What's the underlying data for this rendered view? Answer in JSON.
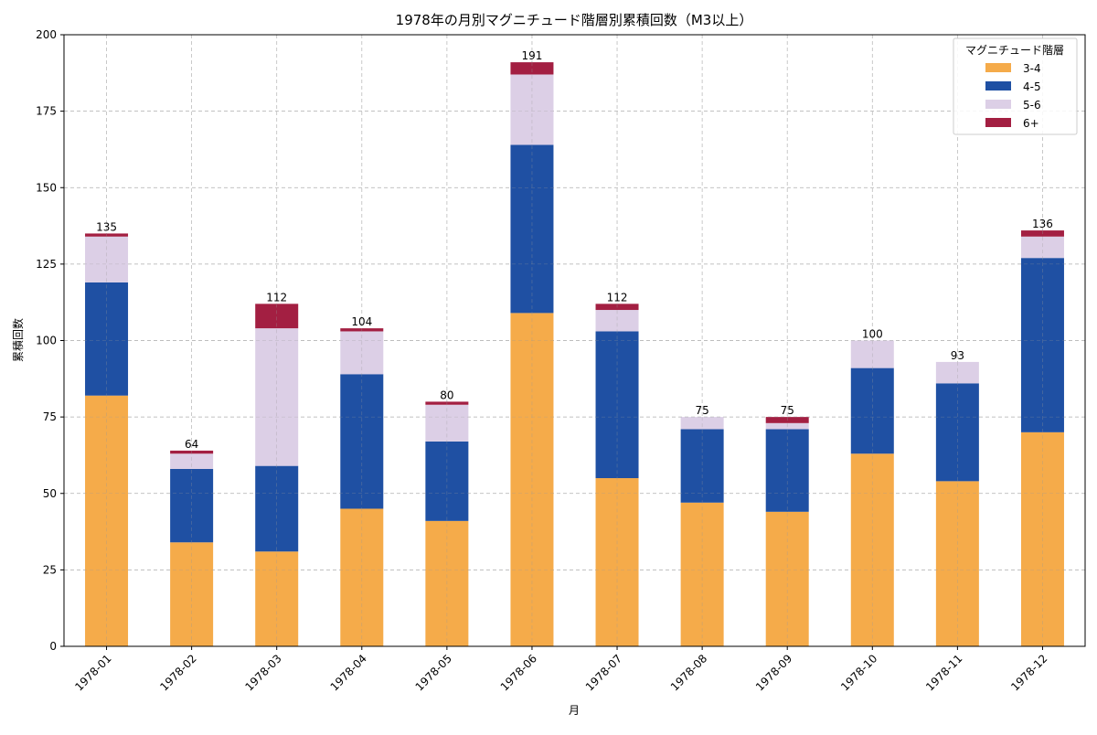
{
  "chart_data": {
    "type": "bar",
    "stacked": true,
    "title": "1978年の月別マグニチュード階層別累積回数（M3以上）",
    "xlabel": "月",
    "ylabel": "累積回数",
    "ylim": [
      0,
      200
    ],
    "yticks": [
      0,
      25,
      50,
      75,
      100,
      125,
      150,
      175,
      200
    ],
    "grid": true,
    "legend": {
      "title": "マグニチュード階層",
      "placement": "top-right"
    },
    "categories": [
      "1978-01",
      "1978-02",
      "1978-03",
      "1978-04",
      "1978-05",
      "1978-06",
      "1978-07",
      "1978-08",
      "1978-09",
      "1978-10",
      "1978-11",
      "1978-12"
    ],
    "series": [
      {
        "name": "3-4",
        "color": "#f5ab4a",
        "values": [
          82,
          34,
          31,
          45,
          41,
          109,
          55,
          47,
          44,
          63,
          54,
          70
        ]
      },
      {
        "name": "4-5",
        "color": "#1f50a3",
        "values": [
          37,
          24,
          28,
          44,
          26,
          55,
          48,
          24,
          27,
          28,
          32,
          57
        ]
      },
      {
        "name": "5-6",
        "color": "#dccfe6",
        "values": [
          15,
          5,
          45,
          14,
          12,
          23,
          7,
          4,
          2,
          9,
          7,
          7
        ]
      },
      {
        "name": "6+",
        "color": "#a31f42",
        "values": [
          1,
          1,
          8,
          1,
          1,
          4,
          2,
          0,
          2,
          0,
          0,
          2
        ]
      }
    ],
    "totals": [
      135,
      64,
      112,
      104,
      80,
      191,
      112,
      75,
      75,
      100,
      93,
      136
    ]
  }
}
